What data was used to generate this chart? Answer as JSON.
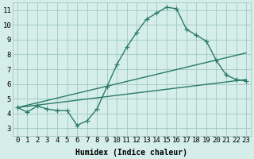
{
  "title": "",
  "xlabel": "Humidex (Indice chaleur)",
  "ylabel": "",
  "bg_color": "#d5eeea",
  "grid_color": "#9fc8c0",
  "line_color": "#2a7a6a",
  "xlim": [
    -0.5,
    23.5
  ],
  "ylim": [
    2.5,
    11.5
  ],
  "xticks": [
    0,
    1,
    2,
    3,
    4,
    5,
    6,
    7,
    8,
    9,
    10,
    11,
    12,
    13,
    14,
    15,
    16,
    17,
    18,
    19,
    20,
    21,
    22,
    23
  ],
  "yticks": [
    3,
    4,
    5,
    6,
    7,
    8,
    9,
    10,
    11
  ],
  "line1_x": [
    0,
    1,
    2,
    3,
    4,
    5,
    6,
    7,
    8,
    9,
    10,
    11,
    12,
    13,
    14,
    15,
    16,
    17,
    18,
    19,
    20,
    21,
    22,
    23
  ],
  "line1_y": [
    4.4,
    4.1,
    4.5,
    4.3,
    4.2,
    4.2,
    3.2,
    3.5,
    4.3,
    5.8,
    7.3,
    8.5,
    9.5,
    10.4,
    10.8,
    11.2,
    11.1,
    9.7,
    9.3,
    8.9,
    7.6,
    6.6,
    6.3,
    6.2
  ],
  "line2_x": [
    0,
    23
  ],
  "line2_y": [
    4.4,
    8.1
  ],
  "line3_x": [
    0,
    23
  ],
  "line3_y": [
    4.4,
    6.3
  ],
  "marker": "+",
  "markersize": 4,
  "linewidth": 1.0,
  "xlabel_fontsize": 7,
  "tick_fontsize": 6.5,
  "figwidth": 3.2,
  "figheight": 2.0,
  "dpi": 100
}
